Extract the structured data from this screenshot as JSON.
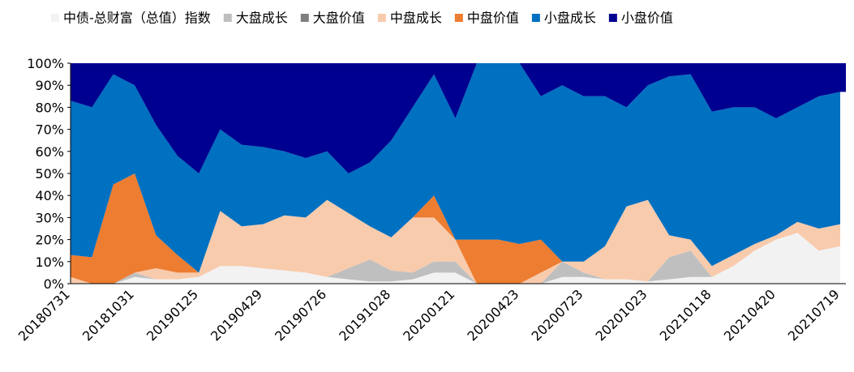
{
  "chart_data": {
    "type": "stacked_area",
    "categories": [
      "20180731",
      null,
      null,
      "20181031",
      null,
      null,
      "20190125",
      null,
      null,
      "20190429",
      null,
      null,
      "20190726",
      null,
      null,
      "20191028",
      null,
      null,
      "20200121",
      null,
      null,
      "20200423",
      null,
      null,
      "20200723",
      null,
      null,
      "20201023",
      null,
      null,
      "20210118",
      null,
      null,
      "20210420",
      null,
      null,
      "20210719"
    ],
    "series": [
      {
        "name": "中债-总财富（总值）指数",
        "color": "#f2f2f2",
        "values": [
          0,
          0,
          0,
          3,
          2,
          2,
          3,
          8,
          8,
          7,
          6,
          5,
          3,
          2,
          1,
          1,
          2,
          5,
          5,
          0,
          0,
          0,
          0,
          3,
          3,
          2,
          2,
          1,
          2,
          3,
          3,
          8,
          15,
          20,
          23,
          15,
          17
        ]
      },
      {
        "name": "大盘成长",
        "color": "#bfbfbf",
        "values": [
          0,
          0,
          0,
          2,
          0,
          0,
          0,
          0,
          0,
          0,
          0,
          0,
          0,
          5,
          10,
          5,
          3,
          5,
          5,
          0,
          0,
          0,
          0,
          7,
          2,
          0,
          0,
          0,
          10,
          12,
          0,
          0,
          0,
          0,
          0,
          0,
          0
        ]
      },
      {
        "name": "大盘价值",
        "color": "#7f7f7f",
        "values": [
          0,
          0,
          0,
          0,
          0,
          0,
          0,
          0,
          0,
          0,
          0,
          0,
          0,
          0,
          0,
          0,
          0,
          0,
          0,
          0,
          0,
          0,
          0,
          0,
          0,
          0,
          0,
          0,
          0,
          0,
          0,
          0,
          0,
          0,
          0,
          0,
          0
        ]
      },
      {
        "name": "中盘成长",
        "color": "#f8cbad",
        "values": [
          3,
          0,
          0,
          0,
          5,
          3,
          2,
          25,
          18,
          20,
          25,
          25,
          35,
          25,
          15,
          15,
          25,
          20,
          10,
          0,
          0,
          0,
          5,
          0,
          5,
          15,
          33,
          37,
          10,
          5,
          5,
          5,
          3,
          2,
          5,
          10,
          10
        ]
      },
      {
        "name": "中盘价值",
        "color": "#ed7d31",
        "values": [
          10,
          12,
          45,
          45,
          15,
          8,
          0,
          0,
          0,
          0,
          0,
          0,
          0,
          0,
          0,
          0,
          0,
          10,
          0,
          20,
          20,
          18,
          15,
          0,
          0,
          0,
          0,
          0,
          0,
          0,
          0,
          0,
          0,
          0,
          0,
          0,
          0
        ]
      },
      {
        "name": "小盘成长",
        "color": "#0070c0",
        "values": [
          70,
          68,
          50,
          40,
          50,
          45,
          45,
          37,
          37,
          35,
          29,
          27,
          22,
          18,
          29,
          44,
          50,
          55,
          55,
          80,
          80,
          82,
          65,
          80,
          75,
          68,
          45,
          52,
          72,
          75,
          70,
          67,
          62,
          53,
          52,
          60,
          60
        ]
      },
      {
        "name": "小盘价值",
        "color": "#000090",
        "values": [
          17,
          20,
          5,
          10,
          28,
          42,
          50,
          30,
          37,
          38,
          40,
          43,
          40,
          50,
          45,
          35,
          20,
          5,
          25,
          0,
          0,
          0,
          15,
          10,
          15,
          15,
          20,
          10,
          6,
          5,
          22,
          20,
          20,
          25,
          20,
          15,
          13
        ]
      }
    ],
    "ylim": [
      0,
      100
    ],
    "yticks": [
      {
        "value": 0,
        "label": "0%"
      },
      {
        "value": 10,
        "label": "10%"
      },
      {
        "value": 20,
        "label": "20%"
      },
      {
        "value": 30,
        "label": "30%"
      },
      {
        "value": 40,
        "label": "40%"
      },
      {
        "value": 50,
        "label": "50%"
      },
      {
        "value": 60,
        "label": "60%"
      },
      {
        "value": 70,
        "label": "70%"
      },
      {
        "value": 80,
        "label": "80%"
      },
      {
        "value": 90,
        "label": "90%"
      },
      {
        "value": 100,
        "label": "100%"
      }
    ],
    "legend": "top"
  }
}
